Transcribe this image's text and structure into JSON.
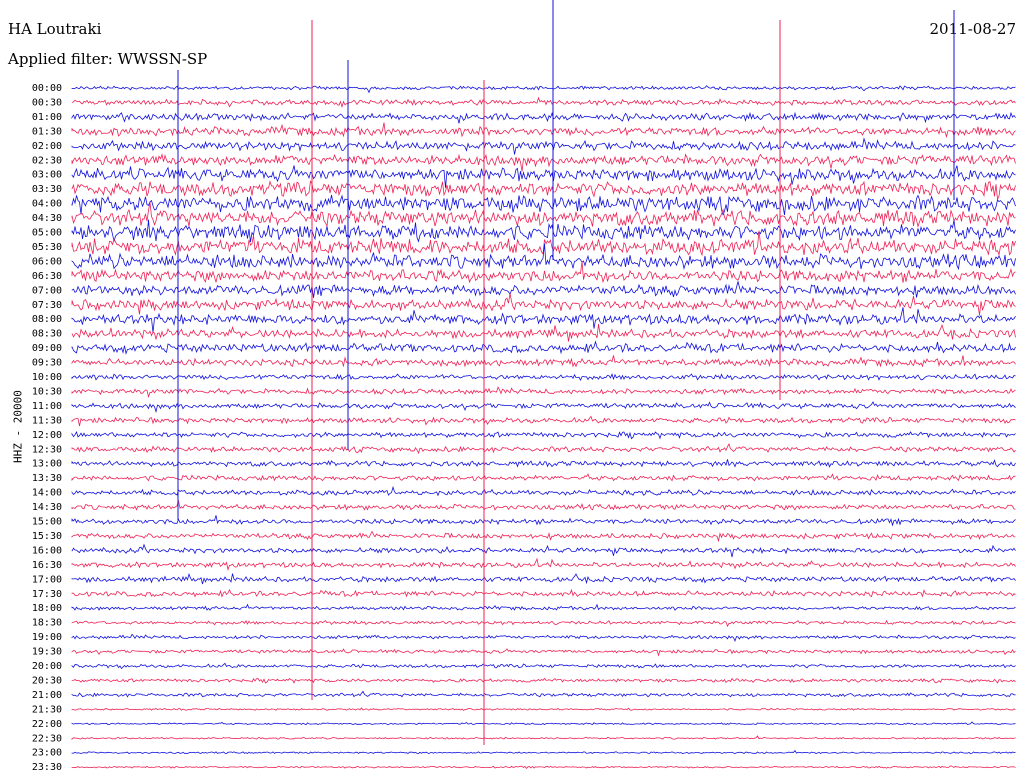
{
  "header": {
    "station": "HA Loutraki",
    "date": "2011-08-27",
    "filter": "Applied filter: WWSSN-SP",
    "channel": "HHZ - 20000"
  },
  "colors": {
    "traceA": "#1111dd",
    "traceB": "#ee2255"
  },
  "chart_data": {
    "type": "line",
    "title": "HA Loutraki",
    "subtitle": "Applied filter: WWSSN-SP",
    "date": "2011-08-27",
    "ylabel": "HHZ - 20000",
    "rows": [
      "00:00",
      "00:30",
      "01:00",
      "01:30",
      "02:00",
      "02:30",
      "03:00",
      "03:30",
      "04:00",
      "04:30",
      "05:00",
      "05:30",
      "06:00",
      "06:30",
      "07:00",
      "07:30",
      "08:00",
      "08:30",
      "09:00",
      "09:30",
      "10:00",
      "10:30",
      "11:00",
      "11:30",
      "12:00",
      "12:30",
      "13:00",
      "13:30",
      "14:00",
      "14:30",
      "15:00",
      "15:30",
      "16:00",
      "16:30",
      "17:00",
      "17:30",
      "18:00",
      "18:30",
      "19:00",
      "19:30",
      "20:00",
      "20:30",
      "21:00",
      "21:30",
      "22:00",
      "22:30",
      "23:00",
      "23:30"
    ],
    "noise_level": [
      2,
      3,
      4,
      5,
      5,
      6,
      7,
      8,
      9,
      9,
      9,
      9,
      8,
      7,
      6,
      6,
      6,
      5,
      5,
      4,
      3,
      3,
      3,
      3,
      3,
      3,
      3,
      3,
      3,
      3,
      3,
      3,
      3,
      3,
      3,
      3,
      2,
      2,
      2,
      2,
      2,
      2,
      2,
      1,
      1,
      1,
      1,
      1
    ],
    "grid": false,
    "legend": "none"
  }
}
